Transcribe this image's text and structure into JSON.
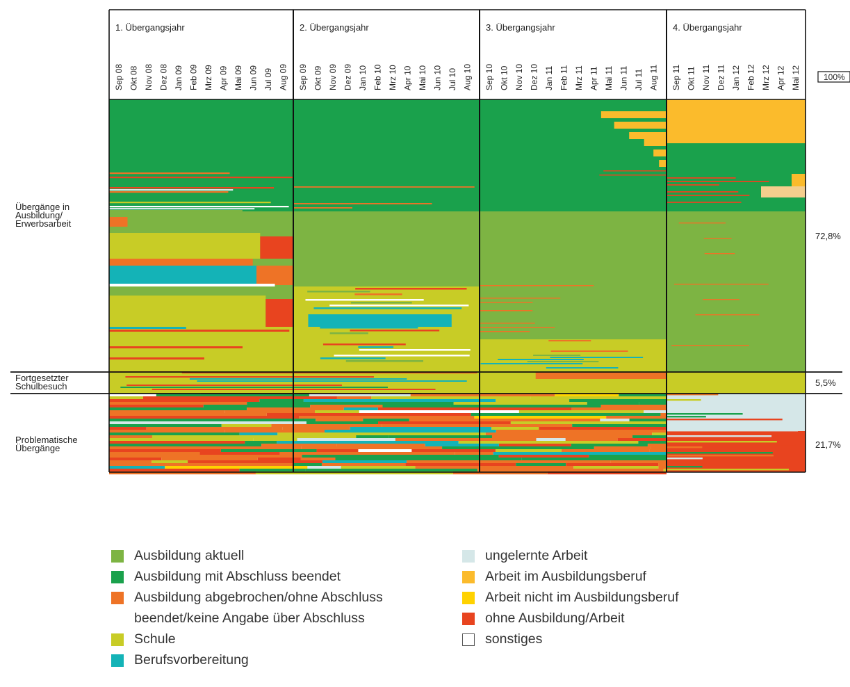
{
  "chart_data": {
    "type": "heatmap",
    "title": "",
    "periods": [
      {
        "label": "1. Übergangsjahr",
        "months": [
          "Sep 08",
          "Okt 08",
          "Nov 08",
          "Dez 08",
          "Jan 09",
          "Feb 09",
          "Mrz 09",
          "Apr 09",
          "Mai 09",
          "Jun 09",
          "Jul 09",
          "Aug 09"
        ]
      },
      {
        "label": "2. Übergangsjahr",
        "months": [
          "Sep 09",
          "Okt 09",
          "Nov 09",
          "Dez 09",
          "Jan 10",
          "Feb 10",
          "Mrz 10",
          "Apr 10",
          "Mai 10",
          "Jun 10",
          "Jul 10",
          "Aug 10"
        ]
      },
      {
        "label": "3. Übergangsjahr",
        "months": [
          "Sep 10",
          "Okt 10",
          "Nov 10",
          "Dez 10",
          "Jan 11",
          "Feb 11",
          "Mrz 11",
          "Apr 11",
          "Mai 11",
          "Jun 11",
          "Jul 11",
          "Aug 11"
        ]
      },
      {
        "label": "4. Übergangsjahr",
        "months": [
          "Sep 11",
          "Okt 11",
          "Nov 11",
          "Dez 11",
          "Jan 12",
          "Feb 12",
          "Mrz 12",
          "Apr 12",
          "Mai 12"
        ]
      }
    ],
    "groups": [
      {
        "label": "Übergänge in\nAusbildung/\nErwerbsarbeit",
        "percent": "72,8%",
        "share": 0.728
      },
      {
        "label": "Fortgesetzter\nSchulbesuch",
        "percent": "5,5%",
        "share": 0.055
      },
      {
        "label": "Problematische\nÜbergänge",
        "percent": "21,7%",
        "share": 0.217
      }
    ],
    "total_label": "100%",
    "legend": [
      {
        "key": "ausbildung_aktuell",
        "label": "Ausbildung aktuell",
        "color": "#7db443"
      },
      {
        "key": "ausbildung_abschluss",
        "label": "Ausbildung mit Abschluss beendet",
        "color": "#1aa14c"
      },
      {
        "key": "ausbildung_abgebrochen",
        "label": "Ausbildung abgebrochen/ohne Abschluss",
        "label2": "beendet/keine Angabe über Abschluss",
        "color": "#ee7326"
      },
      {
        "key": "schule",
        "label": "Schule",
        "color": "#c8cc26"
      },
      {
        "key": "berufsvorbereitung",
        "label": "Berufsvorbereitung",
        "color": "#14b3b7"
      },
      {
        "key": "ungelernte_arbeit",
        "label": "ungelernte Arbeit",
        "color": "#d5e7e8"
      },
      {
        "key": "arbeit_ausbildungsberuf",
        "label": "Arbeit im Ausbildungsberuf",
        "color": "#fbbb2c"
      },
      {
        "key": "arbeit_nicht_ausbildungsberuf",
        "label": "Arbeit nicht im Ausbildungsberuf",
        "color": "#ffd200"
      },
      {
        "key": "ohne",
        "label": "ohne Ausbildung/Arbeit",
        "color": "#e8441f"
      },
      {
        "key": "sonstiges",
        "label": "sonstiges",
        "color": "#ffffff"
      }
    ]
  }
}
